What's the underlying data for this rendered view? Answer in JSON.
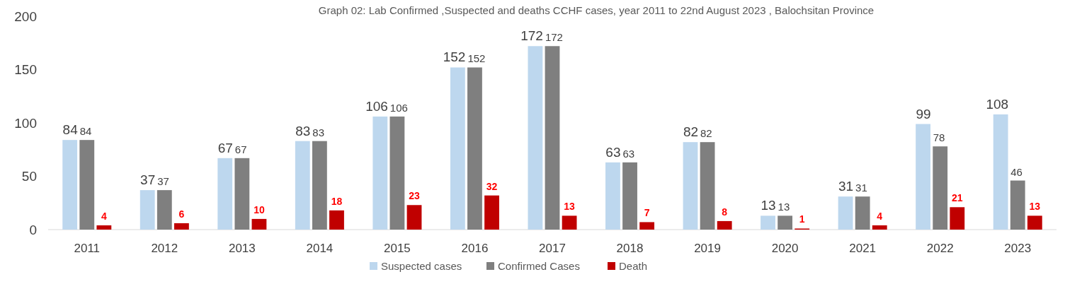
{
  "chart_data": {
    "type": "bar",
    "title": "Graph 02: Lab Confirmed ,Suspected  and deaths CCHF cases, year 2011 to 22nd August 2023 , Balochsitan Province",
    "categories": [
      "2011",
      "2012",
      "2013",
      "2014",
      "2015",
      "2016",
      "2017",
      "2018",
      "2019",
      "2020",
      "2021",
      "2022",
      "2023"
    ],
    "series": [
      {
        "name": "Suspected cases",
        "color": "#bdd7ee",
        "values": [
          84,
          37,
          67,
          83,
          106,
          152,
          172,
          63,
          82,
          13,
          31,
          99,
          108
        ]
      },
      {
        "name": "Confirmed Cases",
        "color": "#7f7f7f",
        "values": [
          84,
          37,
          67,
          83,
          106,
          152,
          172,
          63,
          82,
          13,
          31,
          78,
          46
        ]
      },
      {
        "name": "Death",
        "color": "#c00000",
        "values": [
          4,
          6,
          10,
          18,
          23,
          32,
          13,
          7,
          8,
          1,
          4,
          21,
          13
        ]
      }
    ],
    "ylim": [
      0,
      200
    ],
    "yticks": [
      0,
      50,
      100,
      150,
      200
    ],
    "data_labels": true,
    "legend": "bottom"
  }
}
